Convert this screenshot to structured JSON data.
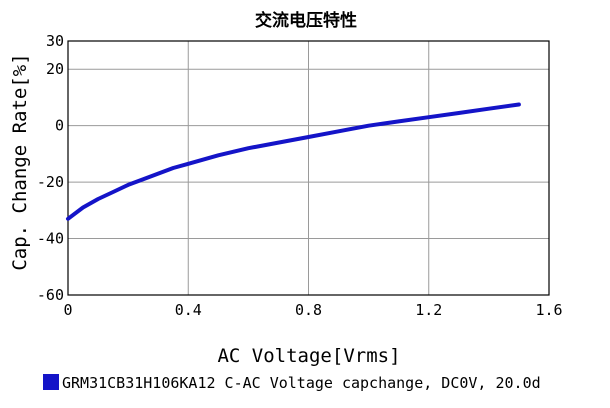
{
  "chart_data": {
    "type": "line",
    "title": "交流电压特性",
    "xlabel": "AC Voltage[Vrms]",
    "ylabel": "Cap. Change Rate[%]",
    "xlim": [
      0,
      1.6
    ],
    "ylim": [
      -60,
      30
    ],
    "x_ticks": [
      0,
      0.4,
      0.8,
      1.2,
      1.6
    ],
    "x_tick_labels": [
      "0",
      "0.4",
      "0.8",
      "1.2",
      "1.6"
    ],
    "y_ticks": [
      -60,
      -40,
      -20,
      0,
      20,
      30
    ],
    "y_tick_labels": [
      "-60",
      "-40",
      "-20",
      "0",
      "20",
      "30"
    ],
    "grid": true,
    "legend_position": "bottom",
    "series": [
      {
        "name": "GRM31CB31H106KA12 C-AC Voltage capchange, DC0V, 20.0d",
        "color": "#1414c8",
        "x": [
          0,
          0.05,
          0.1,
          0.15,
          0.2,
          0.25,
          0.3,
          0.35,
          0.4,
          0.5,
          0.6,
          0.7,
          0.8,
          0.9,
          1.0,
          1.1,
          1.2,
          1.3,
          1.4,
          1.5
        ],
        "y": [
          -33,
          -29,
          -26,
          -23.5,
          -21,
          -19,
          -17,
          -15,
          -13.5,
          -10.5,
          -8,
          -6,
          -4,
          -2,
          0,
          1.5,
          3,
          4.5,
          6,
          7.5
        ]
      }
    ]
  }
}
